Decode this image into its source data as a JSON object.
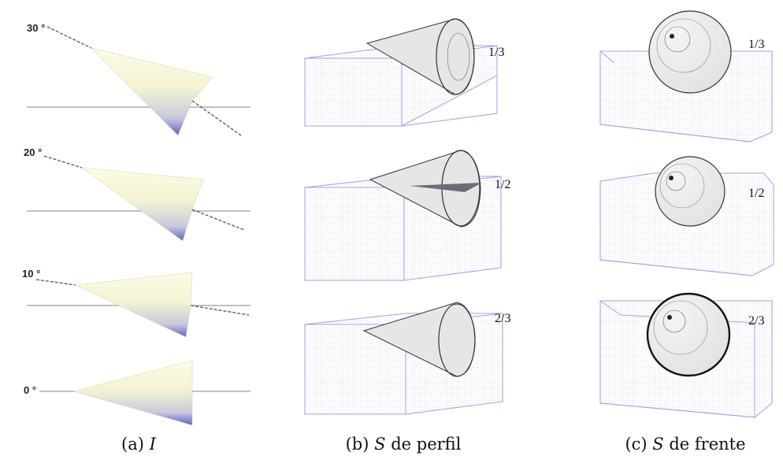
{
  "column_a": {
    "caption_prefix": "(a)",
    "caption_symbol": "I",
    "angles": [
      "30 °",
      "20 °",
      "10 °",
      "0 °"
    ]
  },
  "column_b": {
    "caption_prefix": "(b)",
    "caption_symbol": "S",
    "caption_suffix": "de perfil",
    "fractions": [
      "1/3",
      "1/2",
      "2/3"
    ]
  },
  "column_c": {
    "caption_prefix": "(c)",
    "caption_symbol": "S",
    "caption_suffix": "de frente",
    "fractions": [
      "1/3",
      "1/2",
      "2/3"
    ]
  },
  "colors": {
    "cone_light": "#fbf9e0",
    "cone_shadow": "#5d63c8",
    "box_edge": "#9ca0e6",
    "horizon_line": "#9a9a9a",
    "axis_dash": "#555555"
  }
}
